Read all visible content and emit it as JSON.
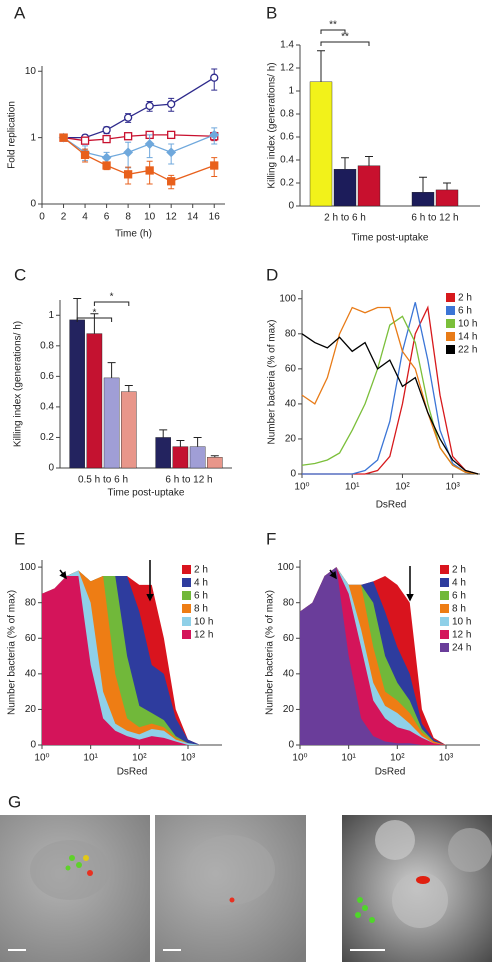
{
  "chart_data": [
    {
      "panel": "A",
      "type": "line",
      "y_label": "Fold replication",
      "x_label": "Time (h)",
      "x": [
        2,
        4,
        6,
        8,
        10,
        12,
        16
      ],
      "xlim": [
        0,
        17
      ],
      "xticks": [
        0,
        2,
        4,
        6,
        8,
        10,
        12,
        14,
        16
      ],
      "ylim": [
        0.1,
        12
      ],
      "ylog": true,
      "yticks": [
        {
          "value": 0.1,
          "label": "0"
        },
        1,
        10
      ],
      "series": [
        {
          "color": "#2e2a8c",
          "marker": "circle-open",
          "values": [
            1,
            1,
            1.3,
            2,
            3,
            3.2,
            8
          ],
          "errors": [
            0,
            0.1,
            0.15,
            0.3,
            0.5,
            0.7,
            2.8
          ]
        },
        {
          "color": "#c8102e",
          "marker": "square-open",
          "values": [
            1,
            0.9,
            0.95,
            1.05,
            1.1,
            1.1,
            1.05
          ],
          "errors": [
            0,
            0.08,
            0.08,
            0.1,
            0.1,
            0.1,
            0.15
          ]
        },
        {
          "color": "#6fa8dc",
          "marker": "diamond",
          "values": [
            1,
            0.6,
            0.5,
            0.6,
            0.8,
            0.6,
            1.1
          ],
          "errors": [
            0,
            0.15,
            0.1,
            0.25,
            0.3,
            0.2,
            0.3
          ]
        },
        {
          "color": "#e8601c",
          "marker": "square",
          "values": [
            1,
            0.55,
            0.38,
            0.28,
            0.32,
            0.22,
            0.38
          ],
          "errors": [
            0,
            0.12,
            0.05,
            0.08,
            0.12,
            0.05,
            0.12
          ]
        }
      ]
    },
    {
      "panel": "B",
      "type": "bar",
      "y_label": "Killing index (generations/ h)",
      "x_label": "Time post-uptake",
      "categories": [
        "2 h to 6 h",
        "6 h to 12 h"
      ],
      "ylim": [
        0,
        1.4
      ],
      "yticks": [
        0,
        0.2,
        0.4,
        0.6,
        0.8,
        1,
        1.2,
        1.4
      ],
      "series": [
        {
          "color": "#f2f21a",
          "values": [
            1.08,
            null
          ],
          "errors": [
            0.27,
            null
          ]
        },
        {
          "color": "#1c1c5a",
          "values": [
            0.32,
            0.12
          ],
          "errors": [
            0.1,
            0.13
          ]
        },
        {
          "color": "#c8102e",
          "values": [
            0.35,
            0.14
          ],
          "errors": [
            0.08,
            0.06
          ]
        }
      ],
      "annotations": [
        "**",
        "**"
      ]
    },
    {
      "panel": "C",
      "type": "bar",
      "y_label": "Killing index (generations/ h)",
      "x_label": "Time post-uptake",
      "categories": [
        "0.5 h to 6 h",
        "6 h to 12 h"
      ],
      "ylim": [
        0,
        1.1
      ],
      "yticks": [
        0,
        0.2,
        0.4,
        0.6,
        0.8,
        1
      ],
      "series": [
        {
          "color": "#23235f",
          "values": [
            0.97,
            0.2
          ],
          "errors": [
            0.14,
            0.05
          ]
        },
        {
          "color": "#c41230",
          "values": [
            0.88,
            0.14
          ],
          "errors": [
            0.13,
            0.04
          ]
        },
        {
          "color": "#a09ed6",
          "values": [
            0.59,
            0.14
          ],
          "errors": [
            0.1,
            0.06
          ]
        },
        {
          "color": "#e8968a",
          "values": [
            0.5,
            0.07
          ],
          "errors": [
            0.04,
            0.01
          ]
        }
      ],
      "annotations": [
        "*",
        "*"
      ]
    },
    {
      "panel": "D",
      "type": "line",
      "y_label": "Number bacteria (% of max)",
      "x_label": "DsRed",
      "x": [
        1,
        1.8,
        3.2,
        5.6,
        10,
        18,
        32,
        56,
        100,
        180,
        320,
        560,
        1000,
        1800,
        3200
      ],
      "xlog": true,
      "xlim": [
        1,
        3500
      ],
      "xticks": [
        {
          "value": 1,
          "label": "10⁰"
        },
        {
          "value": 10,
          "label": "10¹"
        },
        {
          "value": 100,
          "label": "10²"
        },
        {
          "value": 1000,
          "label": "10³"
        }
      ],
      "ylim": [
        0,
        105
      ],
      "yticks": [
        0,
        20,
        40,
        60,
        80,
        100
      ],
      "legend": "upper right",
      "series": [
        {
          "name": "2 h",
          "color": "#d7191c",
          "values": [
            0,
            0,
            0,
            0,
            0,
            0,
            2,
            10,
            40,
            80,
            95,
            45,
            10,
            2,
            0
          ]
        },
        {
          "name": "6 h",
          "color": "#3b75d6",
          "values": [
            0,
            0,
            0,
            0,
            0,
            2,
            8,
            30,
            70,
            98,
            65,
            25,
            6,
            1,
            0
          ]
        },
        {
          "name": "10 h",
          "color": "#7bbf3a",
          "values": [
            5,
            6,
            8,
            12,
            25,
            40,
            60,
            85,
            90,
            75,
            40,
            15,
            5,
            1,
            0
          ]
        },
        {
          "name": "14 h",
          "color": "#e87b17",
          "values": [
            45,
            40,
            55,
            80,
            95,
            92,
            95,
            95,
            70,
            60,
            35,
            15,
            5,
            1,
            0
          ]
        },
        {
          "name": "22 h",
          "color": "#000000",
          "values": [
            80,
            75,
            72,
            78,
            70,
            75,
            60,
            65,
            50,
            55,
            35,
            20,
            8,
            2,
            0
          ]
        }
      ]
    },
    {
      "panel": "E",
      "type": "area",
      "y_label": "Number bacteria (% of max)",
      "x_label": "DsRed",
      "x": [
        1,
        1.8,
        3.2,
        5.6,
        10,
        18,
        32,
        56,
        100,
        180,
        320,
        560,
        1000,
        1800,
        3200
      ],
      "xlog": true,
      "xlim": [
        1,
        5000
      ],
      "xticks": [
        {
          "value": 1,
          "label": "10⁰"
        },
        {
          "value": 10,
          "label": "10¹"
        },
        {
          "value": 100,
          "label": "10²"
        },
        {
          "value": 1000,
          "label": "10³"
        }
      ],
      "ylim": [
        0,
        104
      ],
      "yticks": [
        0,
        20,
        40,
        60,
        80,
        100
      ],
      "legend": "upper right",
      "series": [
        {
          "name": "2 h",
          "color": "#d9141e",
          "values": [
            85,
            88,
            95,
            98,
            92,
            95,
            95,
            95,
            90,
            90,
            60,
            20,
            3,
            0,
            0
          ]
        },
        {
          "name": "4 h",
          "color": "#2e3c9e",
          "values": [
            85,
            88,
            95,
            98,
            92,
            95,
            95,
            95,
            75,
            45,
            40,
            15,
            3,
            0,
            0
          ]
        },
        {
          "name": "6 h",
          "color": "#71b83a",
          "values": [
            85,
            88,
            95,
            98,
            92,
            95,
            95,
            50,
            22,
            18,
            14,
            5,
            1,
            0,
            0
          ]
        },
        {
          "name": "8 h",
          "color": "#ee7d14",
          "values": [
            85,
            88,
            95,
            98,
            92,
            95,
            40,
            15,
            10,
            12,
            10,
            4,
            1,
            0,
            0
          ]
        },
        {
          "name": "10 h",
          "color": "#8fd0e8",
          "values": [
            85,
            88,
            95,
            98,
            80,
            30,
            12,
            8,
            6,
            9,
            8,
            3,
            1,
            0,
            0
          ]
        },
        {
          "name": "12 h",
          "color": "#d4145a",
          "values": [
            85,
            88,
            95,
            95,
            45,
            15,
            8,
            5,
            3,
            5,
            4,
            2,
            0,
            0,
            0
          ]
        }
      ]
    },
    {
      "panel": "F",
      "type": "area",
      "y_label": "Number bacteria (% of max)",
      "x_label": "DsRed",
      "x": [
        1,
        1.8,
        3.2,
        5.6,
        10,
        18,
        32,
        56,
        100,
        180,
        320,
        560,
        1000,
        1800,
        3200
      ],
      "xlog": true,
      "xlim": [
        1,
        5000
      ],
      "xticks": [
        {
          "value": 1,
          "label": "10⁰"
        },
        {
          "value": 10,
          "label": "10¹"
        },
        {
          "value": 100,
          "label": "10²"
        },
        {
          "value": 1000,
          "label": "10³"
        }
      ],
      "ylim": [
        0,
        104
      ],
      "yticks": [
        0,
        20,
        40,
        60,
        80,
        100
      ],
      "legend": "upper right",
      "series": [
        {
          "name": "2 h",
          "color": "#d9141e",
          "values": [
            75,
            80,
            95,
            100,
            90,
            90,
            92,
            95,
            90,
            80,
            20,
            4,
            0,
            0,
            0
          ]
        },
        {
          "name": "4 h",
          "color": "#2e3c9e",
          "values": [
            75,
            80,
            95,
            100,
            90,
            90,
            92,
            75,
            55,
            40,
            12,
            3,
            0,
            0,
            0
          ]
        },
        {
          "name": "6 h",
          "color": "#71b83a",
          "values": [
            75,
            80,
            95,
            100,
            90,
            90,
            80,
            50,
            35,
            25,
            9,
            2,
            0,
            0,
            0
          ]
        },
        {
          "name": "8 h",
          "color": "#ee7d14",
          "values": [
            75,
            80,
            95,
            100,
            90,
            90,
            55,
            30,
            25,
            18,
            7,
            2,
            0,
            0,
            0
          ]
        },
        {
          "name": "10 h",
          "color": "#8fd0e8",
          "values": [
            75,
            80,
            95,
            100,
            90,
            65,
            35,
            22,
            18,
            12,
            5,
            1,
            0,
            0,
            0
          ]
        },
        {
          "name": "12 h",
          "color": "#d4145a",
          "values": [
            75,
            80,
            95,
            100,
            85,
            55,
            25,
            15,
            10,
            8,
            4,
            1,
            0,
            0,
            0
          ]
        },
        {
          "name": "24 h",
          "color": "#6a3d9a",
          "values": [
            75,
            80,
            95,
            100,
            50,
            15,
            5,
            2,
            1,
            1,
            0,
            0,
            0,
            0,
            0
          ]
        }
      ]
    }
  ],
  "figure_g": {
    "panel": "G"
  }
}
